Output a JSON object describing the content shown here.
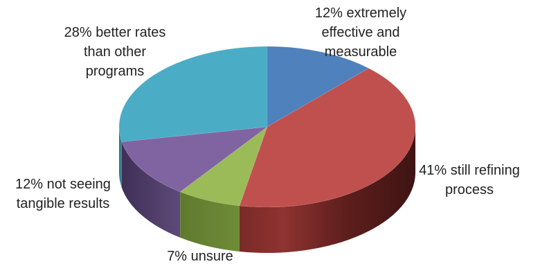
{
  "chart_data": {
    "type": "pie",
    "title": "",
    "categories": [
      "extremely effective and measurable",
      "still refining process",
      "unsure",
      "not seeing tangible results",
      "better rates than other programs"
    ],
    "values": [
      12,
      41,
      7,
      12,
      28
    ],
    "colors": [
      "#4F81BD",
      "#C0504D",
      "#9BBB59",
      "#8064A2",
      "#4BACC6"
    ],
    "labels": [
      [
        "12% extremely",
        "effective and",
        "measurable"
      ],
      [
        "41% still refining",
        "process"
      ],
      [
        "7% unsure"
      ],
      [
        "12% not seeing",
        "tangible results"
      ],
      [
        "28% better rates",
        "than other",
        "programs"
      ]
    ],
    "style": "3d",
    "legend": "none"
  }
}
